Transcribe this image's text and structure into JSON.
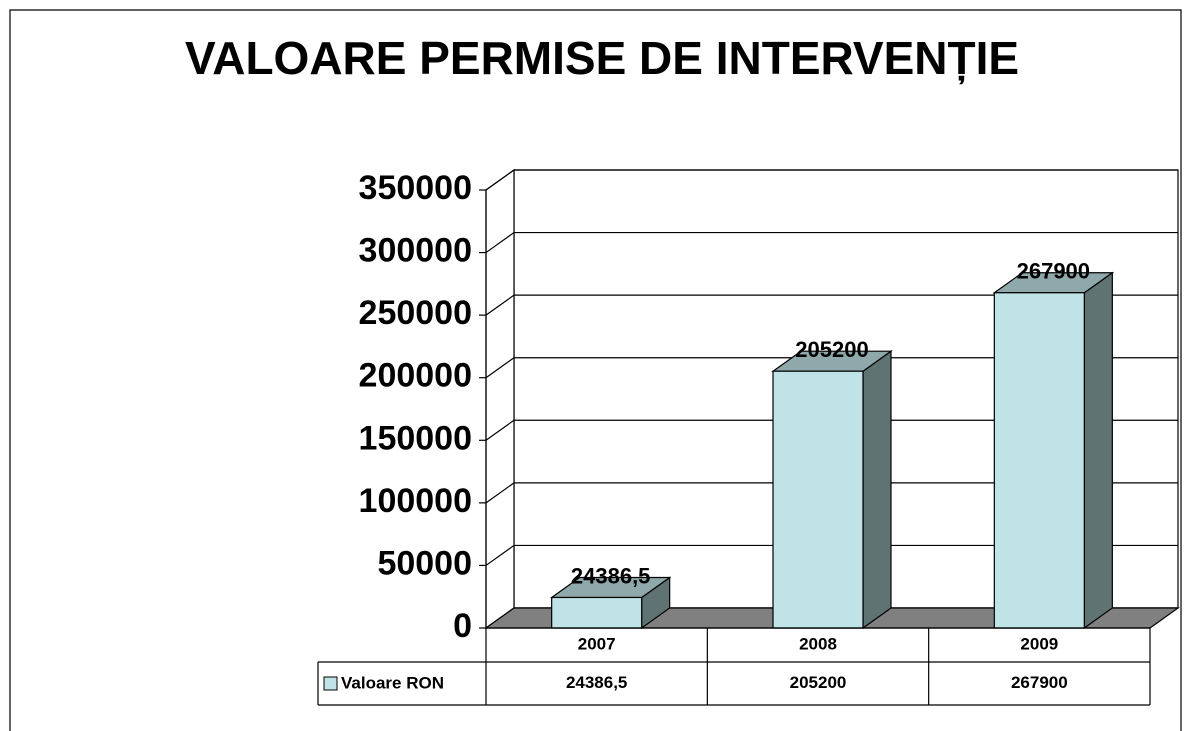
{
  "chart_data": {
    "type": "bar3d",
    "title": "VALOARE PERMISE DE INTERVENȚIE",
    "categories": [
      "2007",
      "2008",
      "2009"
    ],
    "series": [
      {
        "name": "Valoare RON",
        "color": "#bfe3e6",
        "values": [
          24386.5,
          205200,
          267900
        ],
        "value_labels": [
          "24386,5",
          "205200",
          "267900"
        ]
      }
    ],
    "ylim": [
      0,
      350000
    ],
    "yticks": [
      0,
      50000,
      100000,
      150000,
      200000,
      250000,
      300000,
      350000
    ],
    "grid": true
  }
}
